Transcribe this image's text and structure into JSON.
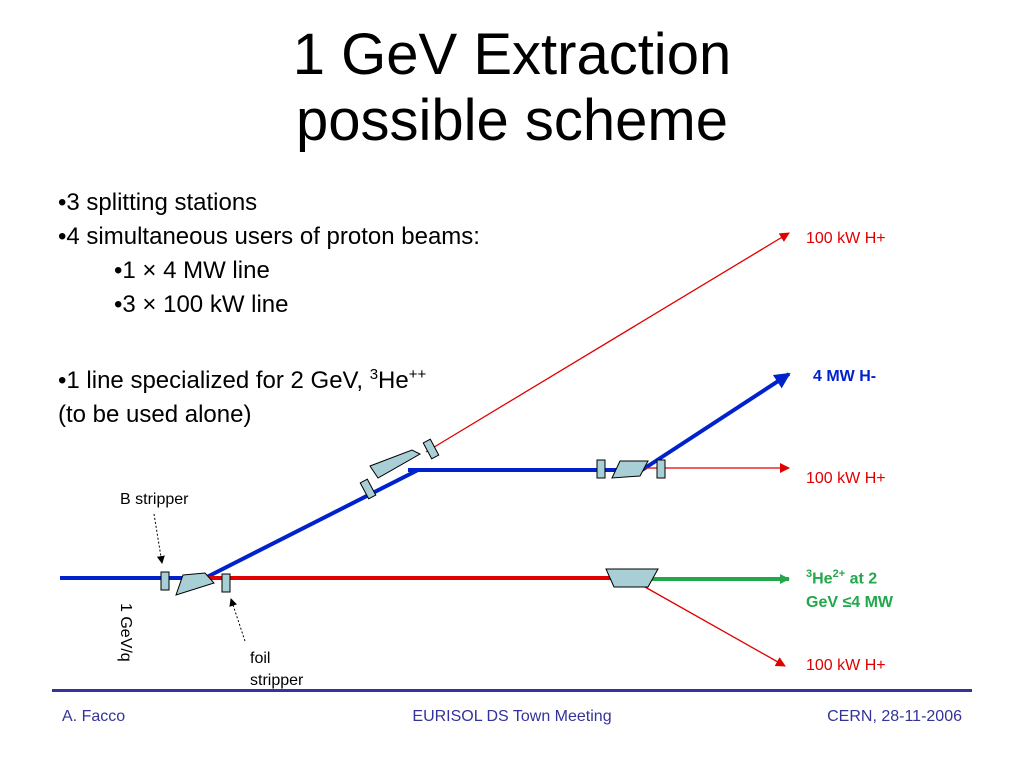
{
  "title": {
    "line1": "1 GeV Extraction",
    "line2": "possible scheme"
  },
  "bullets": {
    "b1": "•3 splitting stations",
    "b2": "•4 simultaneous users of proton beams:",
    "s1": "•1 × 4 MW line",
    "s2": "•3 × 100 kW line",
    "b3_pre": "•1 line specialized for 2 GeV, ",
    "b3_sup1": "3",
    "b3_he": "He",
    "b3_sup2": "++",
    "b3_line2": "(to be used alone)"
  },
  "labels": {
    "top_red": "100 kW H+",
    "mw_blue": "4 MW H-",
    "mid_red": "100 kW H+",
    "he_sup1": "3",
    "he_he": "He",
    "he_sup2": "2+",
    "he_rest": " at 2",
    "he_line2": "GeV ≤4 MW",
    "bot_red": "100 kW H+"
  },
  "annotations": {
    "b_stripper": "B stripper",
    "foil_1": "foil",
    "foil_2": "stripper",
    "gev_q": "1 GeV/q"
  },
  "footer": {
    "left": "A. Facco",
    "center": "EURISOL DS Town Meeting",
    "right": "CERN, 28-11-2006"
  },
  "colors": {
    "blue_beam": "#0022cc",
    "red_beam": "#e00000",
    "green_beam": "#22a84a",
    "element_fill": "#a9cfd6",
    "footer": "#333399"
  }
}
